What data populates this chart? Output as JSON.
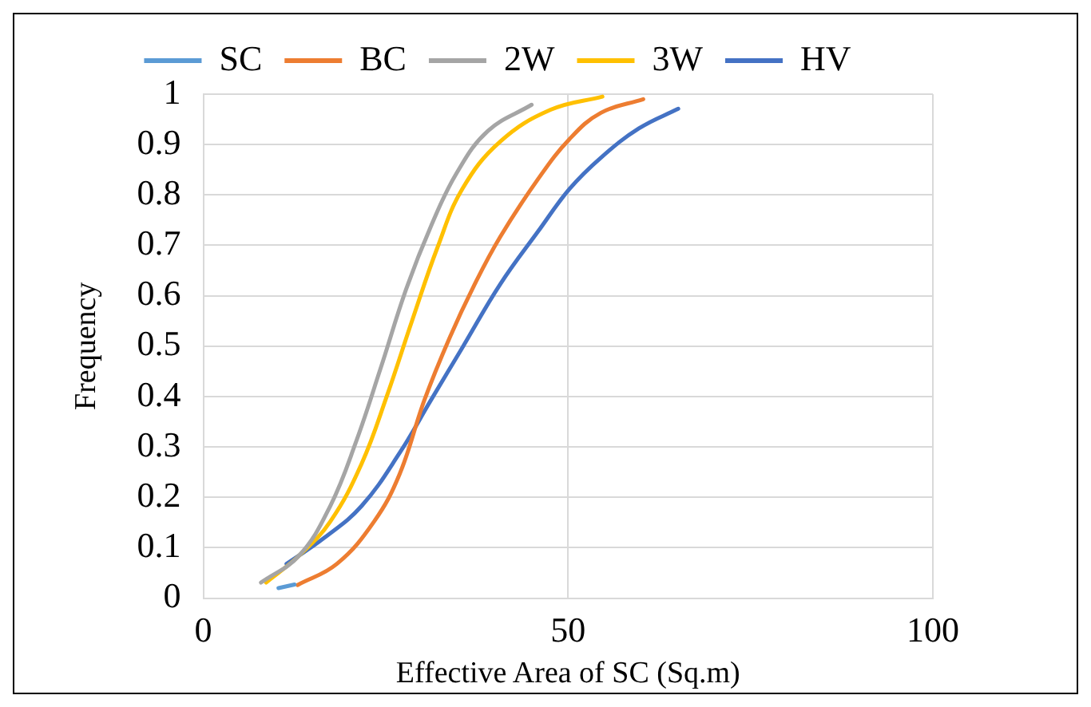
{
  "chart_data": {
    "type": "line",
    "xlabel": "Effective Area of SC (Sq.m)",
    "ylabel": "Frequency",
    "xlim": [
      0,
      100
    ],
    "xticks": [
      0,
      50,
      100
    ],
    "ylim": [
      0,
      1
    ],
    "yticks": [
      0,
      0.1,
      0.2,
      0.3,
      0.4,
      0.5,
      0.6,
      0.7,
      0.8,
      0.9,
      1
    ],
    "grid": true,
    "legend": "top",
    "marker": "none",
    "line_style": "solid",
    "series": [
      {
        "name": "SC",
        "color": "#5b9bd5",
        "x": [
          10.3,
          12.5
        ],
        "values": [
          0.02,
          0.027
        ]
      },
      {
        "name": "BC",
        "color": "#ed7d31",
        "x": [
          12.9,
          18.3,
          23.4,
          26.9,
          30.3,
          33.8,
          37.2,
          40.7,
          45.9,
          50.2,
          54.5,
          60.3
        ],
        "values": [
          0.026,
          0.068,
          0.152,
          0.246,
          0.393,
          0.518,
          0.623,
          0.717,
          0.832,
          0.911,
          0.963,
          0.99
        ]
      },
      {
        "name": "2W",
        "color": "#a5a5a5",
        "x": [
          7.9,
          13.1,
          17.4,
          20.9,
          24.3,
          27.8,
          31.2,
          34.7,
          39,
          45
        ],
        "values": [
          0.031,
          0.084,
          0.183,
          0.309,
          0.456,
          0.613,
          0.738,
          0.843,
          0.927,
          0.979
        ]
      },
      {
        "name": "3W",
        "color": "#ffc000",
        "x": [
          8.6,
          13.1,
          17.4,
          21.7,
          25.2,
          28.6,
          32.1,
          35.5,
          40.7,
          47.6,
          54.7
        ],
        "values": [
          0.031,
          0.084,
          0.152,
          0.267,
          0.403,
          0.55,
          0.696,
          0.812,
          0.906,
          0.969,
          0.995
        ]
      },
      {
        "name": "HV",
        "color": "#4472c4",
        "x": [
          11.4,
          16.6,
          21.7,
          26.9,
          31.2,
          35.5,
          40.7,
          45.9,
          50.2,
          54.5,
          59.7,
          65.1
        ],
        "values": [
          0.068,
          0.12,
          0.183,
          0.288,
          0.393,
          0.497,
          0.623,
          0.728,
          0.812,
          0.874,
          0.932,
          0.971
        ]
      }
    ]
  }
}
